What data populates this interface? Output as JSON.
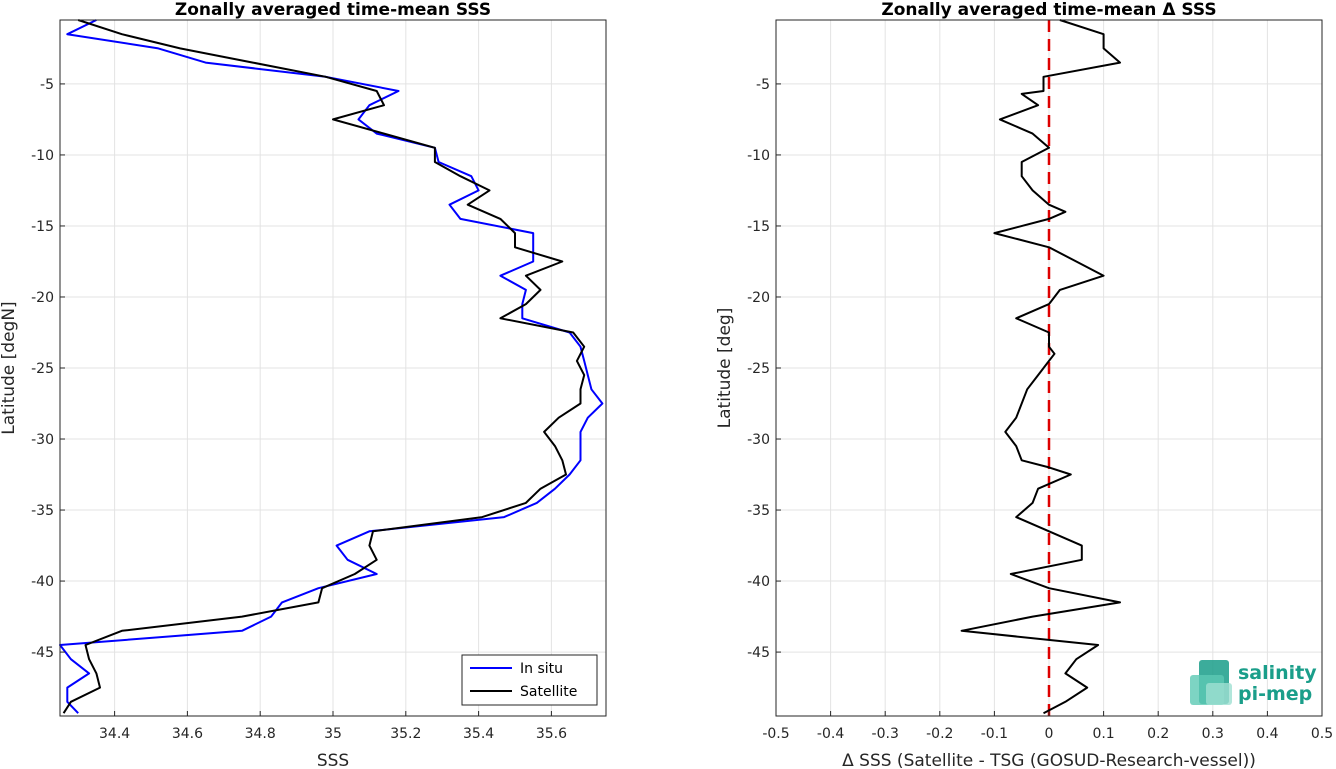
{
  "chart_data": [
    {
      "type": "line",
      "title": "Zonally averaged time-mean SSS",
      "xlabel": "SSS",
      "ylabel": "Latitude [degN]",
      "xlim": [
        34.25,
        35.75
      ],
      "ylim": [
        -49.5,
        -0.5
      ],
      "xticks": [
        34.4,
        34.6,
        34.8,
        35,
        35.2,
        35.4,
        35.6
      ],
      "xtick_labels": [
        "34.4",
        "34.6",
        "34.8",
        "35",
        "35.2",
        "35.4",
        "35.6"
      ],
      "yticks": [
        -5,
        -10,
        -15,
        -20,
        -25,
        -30,
        -35,
        -40,
        -45
      ],
      "ytick_labels": [
        "-5",
        "-10",
        "-15",
        "-20",
        "-25",
        "-30",
        "-35",
        "-40",
        "-45"
      ],
      "grid": true,
      "legend": "bottom-right",
      "series": [
        {
          "name": "In situ",
          "color": "#0000ff",
          "points": [
            [
              34.35,
              -0.5
            ],
            [
              34.27,
              -1.5
            ],
            [
              34.52,
              -2.5
            ],
            [
              34.65,
              -3.5
            ],
            [
              34.98,
              -4.5
            ],
            [
              35.18,
              -5.5
            ],
            [
              35.1,
              -6.5
            ],
            [
              35.07,
              -7.5
            ],
            [
              35.12,
              -8.5
            ],
            [
              35.28,
              -9.5
            ],
            [
              35.29,
              -10.5
            ],
            [
              35.38,
              -11.5
            ],
            [
              35.4,
              -12.5
            ],
            [
              35.32,
              -13.5
            ],
            [
              35.35,
              -14.5
            ],
            [
              35.55,
              -15.5
            ],
            [
              35.55,
              -16.5
            ],
            [
              35.55,
              -17.5
            ],
            [
              35.46,
              -18.5
            ],
            [
              35.53,
              -19.5
            ],
            [
              35.52,
              -20.5
            ],
            [
              35.52,
              -21.5
            ],
            [
              35.65,
              -22.5
            ],
            [
              35.68,
              -23.5
            ],
            [
              35.69,
              -24.5
            ],
            [
              35.7,
              -25.5
            ],
            [
              35.71,
              -26.5
            ],
            [
              35.74,
              -27.5
            ],
            [
              35.7,
              -28.5
            ],
            [
              35.68,
              -29.5
            ],
            [
              35.68,
              -30.5
            ],
            [
              35.68,
              -31.5
            ],
            [
              35.65,
              -32.5
            ],
            [
              35.61,
              -33.5
            ],
            [
              35.56,
              -34.5
            ],
            [
              35.47,
              -35.5
            ],
            [
              35.1,
              -36.5
            ],
            [
              35.01,
              -37.5
            ],
            [
              35.04,
              -38.5
            ],
            [
              35.12,
              -39.5
            ],
            [
              34.96,
              -40.5
            ],
            [
              34.86,
              -41.5
            ],
            [
              34.83,
              -42.5
            ],
            [
              34.75,
              -43.5
            ],
            [
              34.25,
              -44.5
            ],
            [
              34.28,
              -45.5
            ],
            [
              34.33,
              -46.5
            ],
            [
              34.27,
              -47.5
            ],
            [
              34.27,
              -48.5
            ],
            [
              34.3,
              -49.3
            ]
          ]
        },
        {
          "name": "Satellite",
          "color": "#000000",
          "points": [
            [
              34.3,
              -0.5
            ],
            [
              34.42,
              -1.5
            ],
            [
              34.58,
              -2.5
            ],
            [
              34.78,
              -3.5
            ],
            [
              34.98,
              -4.5
            ],
            [
              35.12,
              -5.5
            ],
            [
              35.14,
              -6.5
            ],
            [
              35.0,
              -7.5
            ],
            [
              35.14,
              -8.5
            ],
            [
              35.28,
              -9.5
            ],
            [
              35.28,
              -10.5
            ],
            [
              35.35,
              -11.5
            ],
            [
              35.43,
              -12.5
            ],
            [
              35.37,
              -13.5
            ],
            [
              35.46,
              -14.5
            ],
            [
              35.5,
              -15.5
            ],
            [
              35.5,
              -16.5
            ],
            [
              35.63,
              -17.5
            ],
            [
              35.53,
              -18.5
            ],
            [
              35.57,
              -19.5
            ],
            [
              35.53,
              -20.5
            ],
            [
              35.46,
              -21.5
            ],
            [
              35.66,
              -22.5
            ],
            [
              35.69,
              -23.5
            ],
            [
              35.67,
              -24.5
            ],
            [
              35.69,
              -25.5
            ],
            [
              35.68,
              -26.5
            ],
            [
              35.68,
              -27.5
            ],
            [
              35.62,
              -28.5
            ],
            [
              35.58,
              -29.5
            ],
            [
              35.61,
              -30.5
            ],
            [
              35.63,
              -31.5
            ],
            [
              35.64,
              -32.5
            ],
            [
              35.57,
              -33.5
            ],
            [
              35.53,
              -34.5
            ],
            [
              35.41,
              -35.5
            ],
            [
              35.11,
              -36.5
            ],
            [
              35.1,
              -37.5
            ],
            [
              35.12,
              -38.5
            ],
            [
              35.06,
              -39.5
            ],
            [
              34.97,
              -40.5
            ],
            [
              34.96,
              -41.5
            ],
            [
              34.75,
              -42.5
            ],
            [
              34.42,
              -43.5
            ],
            [
              34.32,
              -44.5
            ],
            [
              34.33,
              -45.5
            ],
            [
              34.35,
              -46.5
            ],
            [
              34.36,
              -47.5
            ],
            [
              34.28,
              -48.5
            ],
            [
              34.26,
              -49.3
            ]
          ]
        }
      ]
    },
    {
      "type": "line",
      "title": "Zonally averaged time-mean Δ SSS",
      "xlabel": "Δ SSS (Satellite - TSG (GOSUD-Research-vessel))",
      "ylabel": "Latitude [deg]",
      "xlim": [
        -0.5,
        0.5
      ],
      "ylim": [
        -49.5,
        -0.5
      ],
      "xticks": [
        -0.5,
        -0.4,
        -0.3,
        -0.2,
        -0.1,
        0,
        0.1,
        0.2,
        0.3,
        0.4,
        0.5
      ],
      "xtick_labels": [
        "-0.5",
        "-0.4",
        "-0.3",
        "-0.2",
        "-0.1",
        "0",
        "0.1",
        "0.2",
        "0.3",
        "0.4",
        "0.5"
      ],
      "yticks": [
        -5,
        -10,
        -15,
        -20,
        -25,
        -30,
        -35,
        -40,
        -45
      ],
      "ytick_labels": [
        "-5",
        "-10",
        "-15",
        "-20",
        "-25",
        "-30",
        "-35",
        "-40",
        "-45"
      ],
      "grid": true,
      "reference_line": {
        "x": 0,
        "color": "#dd0000",
        "style": "dashed"
      },
      "series": [
        {
          "color": "#000000",
          "points": [
            [
              0.02,
              -0.5
            ],
            [
              0.1,
              -1.5
            ],
            [
              0.1,
              -2.5
            ],
            [
              0.13,
              -3.5
            ],
            [
              -0.01,
              -4.5
            ],
            [
              -0.01,
              -5.5
            ],
            [
              -0.05,
              -5.7
            ],
            [
              -0.02,
              -6.5
            ],
            [
              -0.09,
              -7.5
            ],
            [
              -0.03,
              -8.5
            ],
            [
              0.0,
              -9.5
            ],
            [
              -0.05,
              -10.5
            ],
            [
              -0.05,
              -11.5
            ],
            [
              -0.03,
              -12.5
            ],
            [
              0.0,
              -13.5
            ],
            [
              0.03,
              -14.0
            ],
            [
              0.0,
              -14.5
            ],
            [
              -0.1,
              -15.5
            ],
            [
              0.0,
              -16.5
            ],
            [
              0.05,
              -17.5
            ],
            [
              0.1,
              -18.5
            ],
            [
              0.02,
              -19.5
            ],
            [
              0.0,
              -20.5
            ],
            [
              -0.06,
              -21.5
            ],
            [
              0.0,
              -22.5
            ],
            [
              0.0,
              -23.5
            ],
            [
              0.01,
              -24.0
            ],
            [
              0.0,
              -24.5
            ],
            [
              -0.02,
              -25.5
            ],
            [
              -0.04,
              -26.5
            ],
            [
              -0.05,
              -27.5
            ],
            [
              -0.06,
              -28.5
            ],
            [
              -0.08,
              -29.5
            ],
            [
              -0.06,
              -30.5
            ],
            [
              -0.05,
              -31.5
            ],
            [
              0.0,
              -32.0
            ],
            [
              0.04,
              -32.5
            ],
            [
              -0.02,
              -33.5
            ],
            [
              -0.03,
              -34.5
            ],
            [
              -0.06,
              -35.5
            ],
            [
              0.0,
              -36.5
            ],
            [
              0.06,
              -37.5
            ],
            [
              0.06,
              -38.5
            ],
            [
              -0.07,
              -39.5
            ],
            [
              0.0,
              -40.5
            ],
            [
              0.13,
              -41.5
            ],
            [
              -0.03,
              -42.5
            ],
            [
              -0.16,
              -43.5
            ],
            [
              0.09,
              -44.5
            ],
            [
              0.05,
              -45.5
            ],
            [
              0.03,
              -46.5
            ],
            [
              0.07,
              -47.5
            ],
            [
              0.03,
              -48.5
            ],
            [
              -0.01,
              -49.3
            ]
          ]
        }
      ],
      "logo": {
        "text_line1": "salinity",
        "text_line2": "pi-mep",
        "color": "#1a9e8a"
      }
    }
  ]
}
